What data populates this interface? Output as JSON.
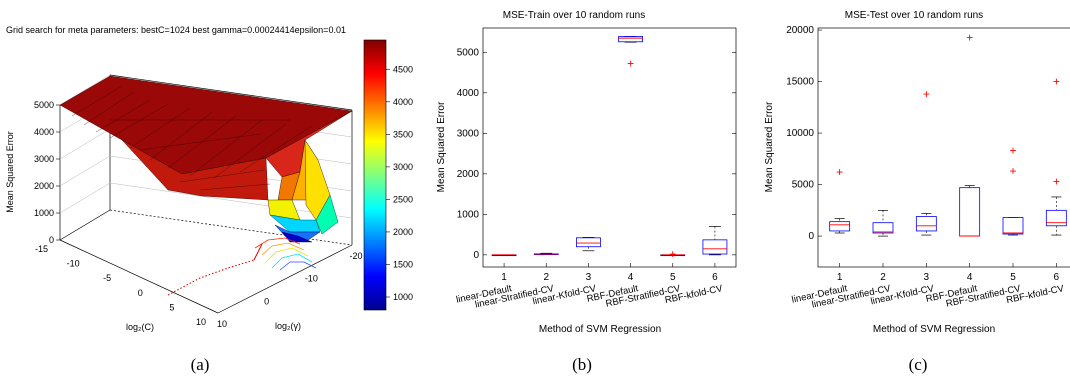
{
  "captions": [
    "(a)",
    "(b)",
    "(c)"
  ],
  "colorbar_ticks": [
    1000,
    1500,
    2000,
    2500,
    3000,
    3500,
    4000,
    4500
  ],
  "chart_data": [
    {
      "type": "surface",
      "title": "Grid search for meta parameters:  bestC=1024 best gamma=0.00024414epsilon=0.01",
      "xlabel": "log₂(C)",
      "ylabel": "log₂(γ)",
      "zlabel": "Mean Squared Error",
      "x_ticks": [
        "-15",
        "-10",
        "-5",
        "0",
        "5",
        "10"
      ],
      "y_ticks": [
        "10",
        "0",
        "-10",
        "-20"
      ],
      "z_ticks": [
        "0",
        "1000",
        "2000",
        "3000",
        "4000",
        "5000"
      ],
      "zlim": [
        0,
        5000
      ],
      "colorbar": {
        "min": 800,
        "max": 4950
      },
      "best": {
        "C": 1024,
        "gamma": 0.00024414,
        "epsilon": 0.01
      }
    },
    {
      "type": "box",
      "title": "MSE-Train over 10 random runs",
      "xlabel": "Method of SVM Regression",
      "ylabel": "Mean Squared Error",
      "ylim": [
        -300,
        5600
      ],
      "y_ticks": [
        0,
        1000,
        2000,
        3000,
        4000,
        5000
      ],
      "categories": [
        "1",
        "2",
        "3",
        "4",
        "5",
        "6"
      ],
      "method_labels": [
        "linear-Default",
        "linear-Stratified-CV",
        "linear-Kfold-CV",
        "RBF-Default",
        "RBF-Stratified-CV",
        "RBF-kfold-CV"
      ],
      "boxes": [
        {
          "whisker_low": 0,
          "q1": 0,
          "median": 0,
          "q3": 0,
          "whisker_high": 0,
          "outliers": []
        },
        {
          "whisker_low": 10,
          "q1": 15,
          "median": 20,
          "q3": 25,
          "whisker_high": 40,
          "outliers": []
        },
        {
          "whisker_low": 100,
          "q1": 200,
          "median": 290,
          "q3": 420,
          "whisker_high": 430,
          "outliers": []
        },
        {
          "whisker_low": 5250,
          "q1": 5260,
          "median": 5350,
          "q3": 5390,
          "whisker_high": 5390,
          "outliers": [
            4720
          ]
        },
        {
          "whisker_low": 0,
          "q1": 0,
          "median": 0,
          "q3": 0,
          "whisker_high": 0,
          "outliers": [
            20
          ]
        },
        {
          "whisker_low": 0,
          "q1": 20,
          "median": 150,
          "q3": 370,
          "whisker_high": 700,
          "outliers": []
        }
      ]
    },
    {
      "type": "box",
      "title": "MSE-Test over 10 random runs",
      "xlabel": "Method of SVM Regression",
      "ylabel": "Mean Squared Error",
      "ylim": [
        -3000,
        20200
      ],
      "y_ticks": [
        0,
        5000,
        10000,
        15000,
        20000
      ],
      "categories": [
        "1",
        "2",
        "3",
        "4",
        "5",
        "6"
      ],
      "method_labels": [
        "linear-Default",
        "linear-Stratified-CV",
        "linear-Kfold-CV",
        "RBF-Default",
        "RBF-Stratified-CV",
        "RBF-kfold-CV"
      ],
      "boxes": [
        {
          "whisker_low": 300,
          "q1": 500,
          "median": 1100,
          "q3": 1400,
          "whisker_high": 1700,
          "outliers": [
            6200
          ]
        },
        {
          "whisker_low": 0,
          "q1": 300,
          "median": 400,
          "q3": 1300,
          "whisker_high": 2500,
          "outliers": []
        },
        {
          "whisker_low": 100,
          "q1": 500,
          "median": 1000,
          "q3": 1900,
          "whisker_high": 2200,
          "outliers": [
            13800
          ]
        },
        {
          "whisker_low": 0,
          "q1": 0,
          "median": 0,
          "q3": 4700,
          "whisker_high": 4900,
          "outliers": [
            19300
          ]
        },
        {
          "whisker_low": 100,
          "q1": 200,
          "median": 300,
          "q3": 1800,
          "whisker_high": 1800,
          "outliers": [
            6300,
            8300
          ]
        },
        {
          "whisker_low": 100,
          "q1": 1000,
          "median": 1300,
          "q3": 2500,
          "whisker_high": 3800,
          "outliers": [
            5300,
            15000
          ]
        }
      ]
    }
  ]
}
